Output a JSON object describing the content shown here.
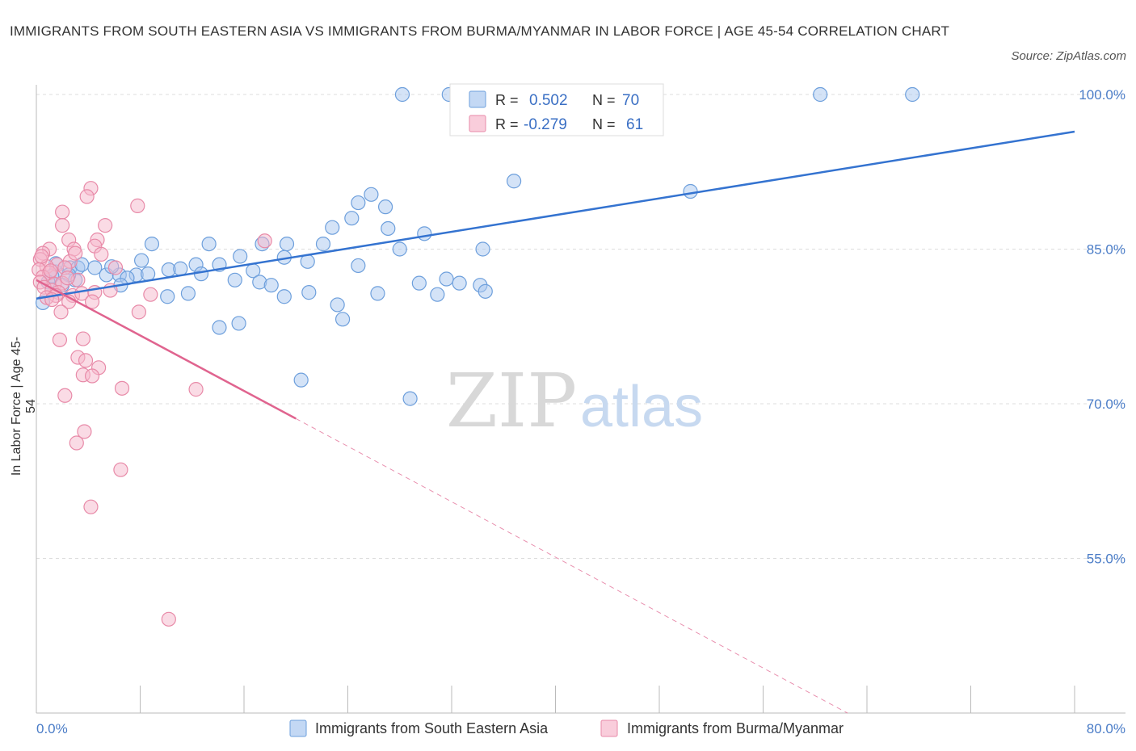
{
  "title": "IMMIGRANTS FROM SOUTH EASTERN ASIA VS IMMIGRANTS FROM BURMA/MYANMAR IN LABOR FORCE | AGE 45-54 CORRELATION CHART",
  "source": "Source: ZipAtlas.com",
  "watermark": {
    "zip": "ZIP",
    "atlas": "atlas"
  },
  "legend_top": {
    "r_label": "R =",
    "n_label": "N =",
    "rows": [
      {
        "r": "0.502",
        "n": "70",
        "color": "#a9c8ef"
      },
      {
        "r": "-0.279",
        "n": "61",
        "color": "#f6b8cc"
      }
    ]
  },
  "colors": {
    "blue_fill": "#a9c8ef",
    "blue_stroke": "#6d9fdc",
    "blue_line": "#3473d0",
    "pink_fill": "#f6b8cc",
    "pink_stroke": "#e88aa8",
    "pink_line": "#e0648f",
    "grid": "#dddddd",
    "axis_text": "#4a7cc7"
  },
  "chart_data": {
    "type": "scatter",
    "title": "IMMIGRANTS FROM SOUTH EASTERN ASIA VS IMMIGRANTS FROM BURMA/MYANMAR IN LABOR FORCE | AGE 45-54 CORRELATION CHART",
    "xlabel": "",
    "ylabel": "In Labor Force | Age 45-54",
    "xlim": [
      0,
      80
    ],
    "ylim": [
      40,
      100
    ],
    "x_tick_labels": [
      "0.0%",
      "80.0%"
    ],
    "y_ticks": [
      55,
      70,
      85,
      100
    ],
    "y_tick_labels": [
      "55.0%",
      "70.0%",
      "85.0%",
      "100.0%"
    ],
    "grid": true,
    "legend_position": "bottom",
    "series": [
      {
        "name": "Immigrants from South Eastern Asia",
        "r": 0.502,
        "n": 70,
        "trend": {
          "x0": 0.0,
          "y0": 80.2,
          "x1": 80.0,
          "y1": 96.4,
          "dashed_from_x": null
        },
        "points": [
          [
            28.2,
            100
          ],
          [
            31.8,
            100
          ],
          [
            60.4,
            100
          ],
          [
            67.5,
            100
          ],
          [
            36.8,
            91.6
          ],
          [
            50.4,
            90.6
          ],
          [
            25.8,
            90.3
          ],
          [
            24.8,
            89.5
          ],
          [
            26.9,
            89.1
          ],
          [
            24.3,
            88.0
          ],
          [
            22.8,
            87.1
          ],
          [
            27.1,
            87.0
          ],
          [
            29.9,
            86.5
          ],
          [
            8.9,
            85.5
          ],
          [
            13.3,
            85.5
          ],
          [
            17.4,
            85.5
          ],
          [
            19.3,
            85.5
          ],
          [
            22.1,
            85.5
          ],
          [
            28.0,
            85.0
          ],
          [
            34.4,
            85.0
          ],
          [
            8.1,
            83.9
          ],
          [
            15.7,
            84.3
          ],
          [
            19.1,
            84.2
          ],
          [
            20.9,
            83.8
          ],
          [
            12.3,
            83.5
          ],
          [
            14.1,
            83.5
          ],
          [
            24.8,
            83.4
          ],
          [
            10.2,
            83.0
          ],
          [
            11.1,
            83.1
          ],
          [
            16.7,
            82.9
          ],
          [
            4.5,
            83.2
          ],
          [
            5.4,
            82.5
          ],
          [
            6.4,
            82.5
          ],
          [
            7.7,
            82.5
          ],
          [
            8.6,
            82.6
          ],
          [
            12.7,
            82.6
          ],
          [
            7.0,
            82.2
          ],
          [
            6.5,
            81.5
          ],
          [
            2.6,
            83.2
          ],
          [
            3.2,
            83.2
          ],
          [
            3.0,
            82.0
          ],
          [
            2.5,
            82.5
          ],
          [
            1.5,
            82.8
          ],
          [
            1.2,
            82.4
          ],
          [
            2.0,
            81.5
          ],
          [
            0.9,
            81.8
          ],
          [
            15.3,
            82.0
          ],
          [
            17.2,
            81.8
          ],
          [
            18.1,
            81.5
          ],
          [
            29.5,
            81.7
          ],
          [
            31.6,
            82.1
          ],
          [
            32.6,
            81.7
          ],
          [
            34.2,
            81.5
          ],
          [
            21.0,
            80.8
          ],
          [
            11.7,
            80.7
          ],
          [
            10.1,
            80.4
          ],
          [
            19.1,
            80.4
          ],
          [
            26.3,
            80.7
          ],
          [
            34.6,
            80.9
          ],
          [
            30.9,
            80.6
          ],
          [
            23.2,
            79.6
          ],
          [
            0.5,
            79.8
          ],
          [
            14.1,
            77.4
          ],
          [
            15.6,
            77.8
          ],
          [
            23.6,
            78.2
          ],
          [
            20.4,
            72.3
          ],
          [
            28.8,
            70.5
          ],
          [
            1.5,
            83.6
          ],
          [
            3.5,
            83.5
          ],
          [
            5.8,
            83.3
          ]
        ]
      },
      {
        "name": "Immigrants from Burma/Myanmar",
        "r": -0.279,
        "n": 61,
        "trend": {
          "x0": 0.0,
          "y0": 82.0,
          "x1": 62.5,
          "y1": 40.0,
          "dashed_from_x": 20.0
        },
        "points": [
          [
            4.2,
            90.9
          ],
          [
            3.9,
            90.1
          ],
          [
            7.8,
            89.2
          ],
          [
            2.0,
            88.6
          ],
          [
            2.0,
            87.3
          ],
          [
            5.3,
            87.3
          ],
          [
            2.5,
            85.9
          ],
          [
            4.7,
            85.9
          ],
          [
            17.6,
            85.8
          ],
          [
            4.5,
            85.3
          ],
          [
            2.9,
            85.0
          ],
          [
            1.0,
            85.0
          ],
          [
            0.5,
            84.6
          ],
          [
            5.0,
            84.5
          ],
          [
            0.3,
            84.0
          ],
          [
            1.6,
            83.5
          ],
          [
            0.8,
            83.3
          ],
          [
            2.6,
            83.8
          ],
          [
            2.2,
            83.2
          ],
          [
            0.2,
            83.0
          ],
          [
            1.0,
            82.7
          ],
          [
            0.5,
            82.3
          ],
          [
            0.3,
            81.8
          ],
          [
            1.4,
            81.6
          ],
          [
            2.0,
            81.7
          ],
          [
            3.2,
            82.0
          ],
          [
            0.6,
            81.3
          ],
          [
            1.2,
            81.0
          ],
          [
            1.7,
            80.8
          ],
          [
            1.5,
            80.5
          ],
          [
            2.8,
            80.5
          ],
          [
            3.5,
            80.7
          ],
          [
            0.8,
            80.3
          ],
          [
            4.5,
            80.8
          ],
          [
            8.8,
            80.6
          ],
          [
            1.2,
            80.1
          ],
          [
            2.5,
            79.9
          ],
          [
            4.3,
            79.9
          ],
          [
            1.9,
            78.9
          ],
          [
            7.9,
            78.9
          ],
          [
            1.8,
            76.2
          ],
          [
            3.6,
            76.3
          ],
          [
            3.2,
            74.5
          ],
          [
            3.8,
            74.2
          ],
          [
            4.8,
            73.5
          ],
          [
            3.6,
            72.8
          ],
          [
            4.3,
            72.7
          ],
          [
            6.6,
            71.5
          ],
          [
            12.3,
            71.4
          ],
          [
            2.2,
            70.8
          ],
          [
            3.7,
            67.3
          ],
          [
            3.1,
            66.2
          ],
          [
            6.5,
            63.6
          ],
          [
            4.2,
            60.0
          ],
          [
            10.2,
            49.1
          ],
          [
            3.0,
            84.6
          ],
          [
            1.1,
            82.9
          ],
          [
            6.1,
            83.2
          ],
          [
            2.4,
            82.2
          ],
          [
            0.4,
            84.3
          ],
          [
            5.7,
            81.0
          ]
        ]
      }
    ]
  }
}
